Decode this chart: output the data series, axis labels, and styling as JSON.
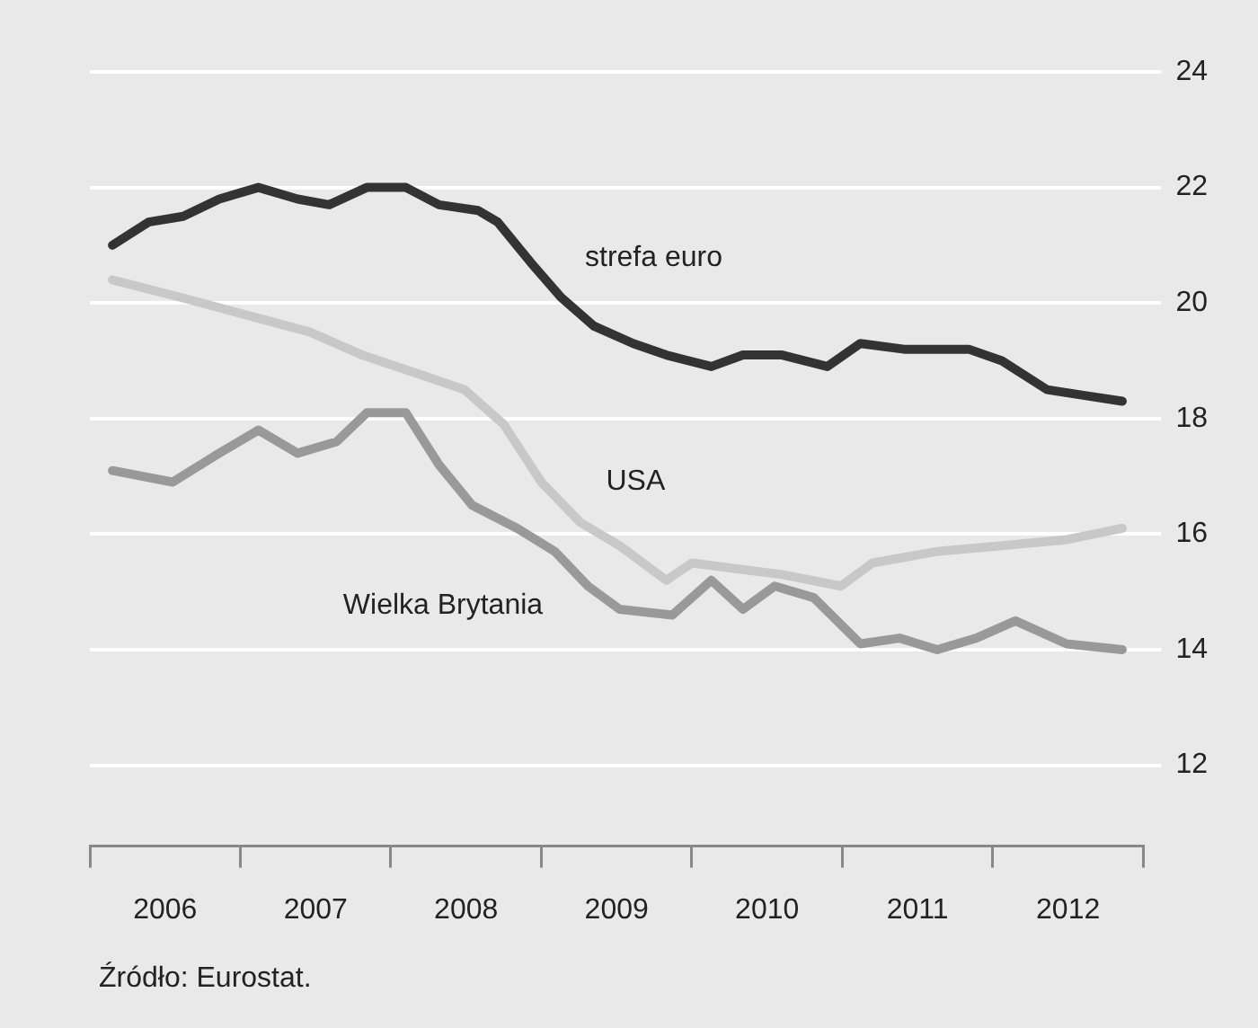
{
  "chart_data": {
    "type": "line",
    "series": [
      {
        "name": "strefa euro",
        "color": "#333333",
        "x": [
          2006.15,
          2006.39,
          2006.62,
          2006.86,
          2007.12,
          2007.38,
          2007.59,
          2007.84,
          2008.1,
          2008.32,
          2008.58,
          2008.71,
          2008.93,
          2009.13,
          2009.35,
          2009.61,
          2009.83,
          2010.13,
          2010.34,
          2010.6,
          2010.9,
          2011.12,
          2011.41,
          2011.84,
          2012.06,
          2012.36,
          2012.61,
          2012.86
        ],
        "values": [
          21.0,
          21.4,
          21.5,
          21.8,
          22.0,
          21.8,
          21.7,
          22.0,
          22.0,
          21.7,
          21.6,
          21.4,
          20.7,
          20.1,
          19.6,
          19.3,
          19.1,
          18.9,
          19.1,
          19.1,
          18.9,
          19.3,
          19.2,
          19.2,
          19.0,
          18.5,
          18.4,
          18.3
        ]
      },
      {
        "name": "USA",
        "color": "#c8c8c8",
        "x": [
          2006.15,
          2006.6,
          2007.03,
          2007.46,
          2007.81,
          2008.15,
          2008.49,
          2008.75,
          2009.0,
          2009.26,
          2009.52,
          2009.83,
          2010.0,
          2010.3,
          2010.6,
          2010.99,
          2011.2,
          2011.63,
          2012.06,
          2012.48,
          2012.86
        ],
        "values": [
          20.4,
          20.1,
          19.8,
          19.5,
          19.1,
          18.8,
          18.5,
          17.9,
          16.9,
          16.2,
          15.8,
          15.2,
          15.5,
          15.4,
          15.3,
          15.1,
          15.5,
          15.7,
          15.8,
          15.9,
          16.1
        ]
      },
      {
        "name": "Wielka Brytania",
        "color": "#999999",
        "x": [
          2006.15,
          2006.55,
          2006.86,
          2007.12,
          2007.38,
          2007.64,
          2007.84,
          2008.1,
          2008.32,
          2008.54,
          2008.84,
          2009.09,
          2009.31,
          2009.52,
          2009.87,
          2010.13,
          2010.34,
          2010.55,
          2010.81,
          2011.12,
          2011.38,
          2011.63,
          2011.89,
          2012.15,
          2012.49,
          2012.86
        ],
        "values": [
          17.1,
          16.9,
          17.4,
          17.8,
          17.4,
          17.6,
          18.1,
          18.1,
          17.2,
          16.5,
          16.1,
          15.7,
          15.1,
          14.7,
          14.6,
          15.2,
          14.7,
          15.1,
          14.9,
          14.1,
          14.2,
          14.0,
          14.2,
          14.5,
          14.1,
          14.0
        ]
      }
    ],
    "xlim": [
      2006,
      2013
    ],
    "xticks": [
      {
        "value": 2006,
        "label": null
      },
      {
        "value": 2006.5,
        "label": "2006"
      },
      {
        "value": 2007,
        "label": null
      },
      {
        "value": 2007.5,
        "label": "2007"
      },
      {
        "value": 2008,
        "label": null
      },
      {
        "value": 2008.5,
        "label": "2008"
      },
      {
        "value": 2009,
        "label": null
      },
      {
        "value": 2009.5,
        "label": "2009"
      },
      {
        "value": 2010,
        "label": null
      },
      {
        "value": 2010.5,
        "label": "2010"
      },
      {
        "value": 2011,
        "label": null
      },
      {
        "value": 2011.5,
        "label": "2011"
      },
      {
        "value": 2012,
        "label": null
      },
      {
        "value": 2012.5,
        "label": "2012"
      },
      {
        "value": 2013,
        "label": null
      }
    ],
    "ylim": [
      10.6,
      24
    ],
    "yticks": [
      12,
      14,
      16,
      18,
      20,
      22,
      24
    ],
    "grid": "y",
    "legend": false,
    "marker": "none",
    "line_style": "solid",
    "annotations": [
      "Źródło: Eurostat."
    ]
  }
}
